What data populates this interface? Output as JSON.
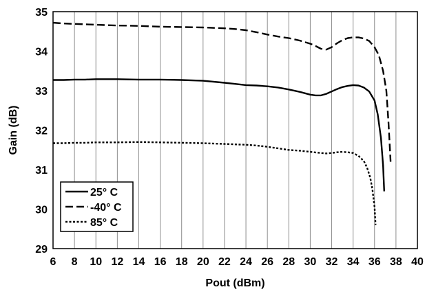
{
  "chart_data": {
    "type": "line",
    "title": "",
    "xlabel": "Pout (dBm)",
    "ylabel": "Gain (dB)",
    "xlim": [
      6,
      40
    ],
    "ylim": [
      29,
      35
    ],
    "xticks": [
      6,
      8,
      10,
      12,
      14,
      16,
      18,
      20,
      22,
      24,
      26,
      28,
      30,
      32,
      34,
      36,
      38,
      40
    ],
    "yticks": [
      29,
      30,
      31,
      32,
      33,
      34,
      35
    ],
    "grid": "vertical",
    "legend_position": "bottom-left",
    "series": [
      {
        "name": "25° C",
        "style": "solid",
        "x": [
          6,
          7,
          8,
          9,
          10,
          11,
          12,
          14,
          16,
          18,
          20,
          22,
          23,
          24,
          25,
          26,
          27,
          28,
          29,
          30,
          30.5,
          31,
          31.5,
          32,
          32.5,
          33,
          33.5,
          34,
          34.5,
          35,
          35.5,
          36,
          36.3,
          36.6,
          36.8,
          36.9
        ],
        "y": [
          33.27,
          33.27,
          33.28,
          33.28,
          33.29,
          33.29,
          33.29,
          33.28,
          33.28,
          33.27,
          33.25,
          33.2,
          33.17,
          33.14,
          33.13,
          33.11,
          33.08,
          33.03,
          32.97,
          32.9,
          32.88,
          32.88,
          32.92,
          32.98,
          33.04,
          33.09,
          33.12,
          33.14,
          33.13,
          33.08,
          32.98,
          32.75,
          32.4,
          31.8,
          31.1,
          30.45
        ]
      },
      {
        "name": "-40° C",
        "style": "dashed",
        "x": [
          6,
          7,
          8,
          9,
          10,
          11,
          12,
          14,
          16,
          18,
          20,
          22,
          23,
          24,
          25,
          26,
          27,
          28,
          29,
          30,
          30.5,
          31,
          31.5,
          32,
          32.5,
          33,
          33.5,
          34,
          34.5,
          35,
          35.5,
          36,
          36.4,
          36.8,
          37.1,
          37.3,
          37.5
        ],
        "y": [
          34.72,
          34.7,
          34.69,
          34.68,
          34.67,
          34.66,
          34.65,
          34.64,
          34.62,
          34.61,
          34.6,
          34.58,
          34.56,
          34.53,
          34.48,
          34.42,
          34.37,
          34.33,
          34.27,
          34.19,
          34.13,
          34.06,
          34.04,
          34.1,
          34.2,
          34.28,
          34.33,
          34.35,
          34.35,
          34.32,
          34.26,
          34.1,
          33.9,
          33.5,
          33.0,
          32.2,
          31.2
        ]
      },
      {
        "name": "85° C",
        "style": "dotted",
        "x": [
          6,
          7,
          8,
          9,
          10,
          11,
          12,
          14,
          16,
          18,
          20,
          22,
          24,
          25,
          26,
          27,
          28,
          29,
          30,
          31,
          31.5,
          32,
          32.5,
          33,
          33.5,
          34,
          34.5,
          35,
          35.3,
          35.6,
          35.8,
          36.0,
          36.1
        ],
        "y": [
          31.67,
          31.67,
          31.68,
          31.68,
          31.69,
          31.69,
          31.69,
          31.7,
          31.69,
          31.68,
          31.67,
          31.65,
          31.63,
          31.61,
          31.58,
          31.54,
          31.5,
          31.48,
          31.45,
          31.42,
          31.41,
          31.42,
          31.44,
          31.45,
          31.44,
          31.42,
          31.35,
          31.22,
          31.05,
          30.8,
          30.5,
          30.05,
          29.6
        ]
      }
    ]
  }
}
